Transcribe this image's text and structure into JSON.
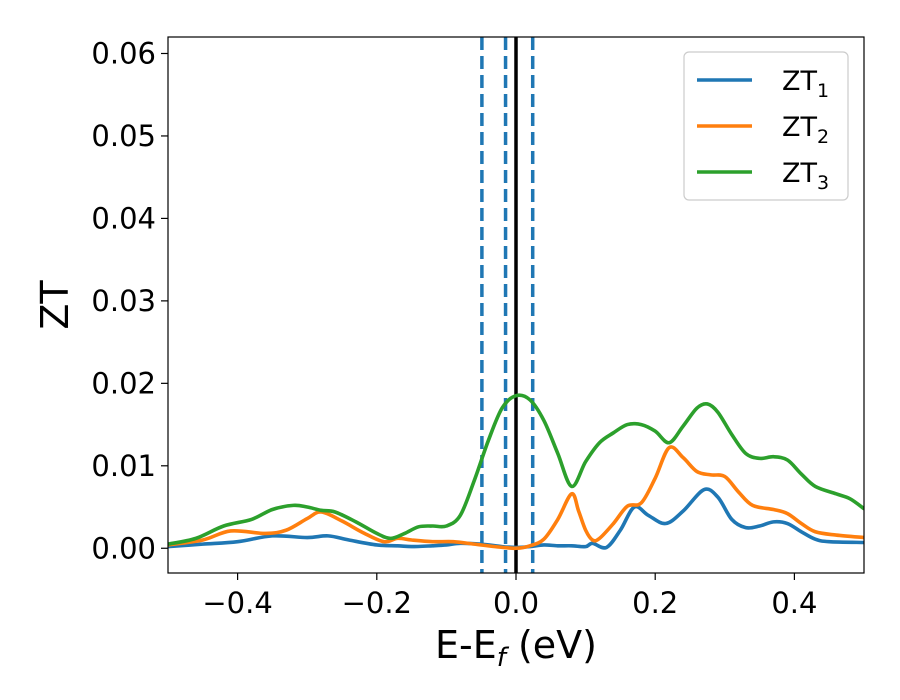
{
  "chart_data": {
    "type": "line",
    "xlabel": "E-E",
    "xlabel_subscript": "f",
    "xlabel_unit": " (eV)",
    "ylabel": "ZT",
    "xlim": [
      -0.5,
      0.5
    ],
    "ylim": [
      -0.003,
      0.062
    ],
    "xticks": [
      -0.4,
      -0.2,
      0.0,
      0.2,
      0.4
    ],
    "xtick_labels": [
      "−0.4",
      "−0.2",
      "0.0",
      "0.2",
      "0.4"
    ],
    "yticks": [
      0.0,
      0.01,
      0.02,
      0.03,
      0.04,
      0.05,
      0.06
    ],
    "ytick_labels": [
      "0.00",
      "0.01",
      "0.02",
      "0.03",
      "0.04",
      "0.05",
      "0.06"
    ],
    "grid": false,
    "legend_position": "top-right",
    "vlines": [
      {
        "x": -0.049,
        "style": "dashed",
        "color": "#1f77b4"
      },
      {
        "x": -0.015,
        "style": "dashed",
        "color": "#1f77b4"
      },
      {
        "x": 0.0,
        "style": "solid",
        "color": "#000000"
      },
      {
        "x": 0.024,
        "style": "dashed",
        "color": "#1f77b4"
      }
    ],
    "series": [
      {
        "name": "ZT",
        "name_subscript": "1",
        "color": "#1f77b4",
        "points": [
          [
            -0.5,
            0.0002
          ],
          [
            -0.45,
            0.0005
          ],
          [
            -0.4,
            0.0008
          ],
          [
            -0.35,
            0.0015
          ],
          [
            -0.3,
            0.0013
          ],
          [
            -0.27,
            0.0015
          ],
          [
            -0.24,
            0.001
          ],
          [
            -0.2,
            0.0004
          ],
          [
            -0.17,
            0.0003
          ],
          [
            -0.15,
            0.0002
          ],
          [
            -0.12,
            0.0003
          ],
          [
            -0.1,
            0.0004
          ],
          [
            -0.08,
            0.0006
          ],
          [
            -0.05,
            0.0005
          ],
          [
            -0.02,
            0.0002
          ],
          [
            0.0,
            0.0001
          ],
          [
            0.02,
            0.0002
          ],
          [
            0.04,
            0.0004
          ],
          [
            0.06,
            0.0003
          ],
          [
            0.08,
            0.0003
          ],
          [
            0.1,
            0.0002
          ],
          [
            0.11,
            0.0006
          ],
          [
            0.13,
            0.0001
          ],
          [
            0.15,
            0.0022
          ],
          [
            0.17,
            0.005
          ],
          [
            0.19,
            0.004
          ],
          [
            0.215,
            0.003
          ],
          [
            0.24,
            0.0045
          ],
          [
            0.27,
            0.0071
          ],
          [
            0.29,
            0.0062
          ],
          [
            0.31,
            0.0035
          ],
          [
            0.33,
            0.0025
          ],
          [
            0.35,
            0.0027
          ],
          [
            0.37,
            0.0032
          ],
          [
            0.39,
            0.003
          ],
          [
            0.41,
            0.002
          ],
          [
            0.43,
            0.0011
          ],
          [
            0.45,
            0.0008
          ],
          [
            0.5,
            0.0007
          ]
        ]
      },
      {
        "name": "ZT",
        "name_subscript": "2",
        "color": "#ff7f0e",
        "points": [
          [
            -0.5,
            0.0004
          ],
          [
            -0.45,
            0.001
          ],
          [
            -0.41,
            0.0021
          ],
          [
            -0.36,
            0.0018
          ],
          [
            -0.33,
            0.0022
          ],
          [
            -0.3,
            0.0036
          ],
          [
            -0.28,
            0.0044
          ],
          [
            -0.25,
            0.0033
          ],
          [
            -0.22,
            0.0019
          ],
          [
            -0.19,
            0.0008
          ],
          [
            -0.17,
            0.0012
          ],
          [
            -0.15,
            0.001
          ],
          [
            -0.12,
            0.0008
          ],
          [
            -0.09,
            0.0008
          ],
          [
            -0.06,
            0.0005
          ],
          [
            -0.03,
            0.0002
          ],
          [
            0.0,
            0.0
          ],
          [
            0.02,
            0.0003
          ],
          [
            0.04,
            0.0011
          ],
          [
            0.06,
            0.0035
          ],
          [
            0.08,
            0.0066
          ],
          [
            0.09,
            0.0045
          ],
          [
            0.1,
            0.0022
          ],
          [
            0.11,
            0.001
          ],
          [
            0.12,
            0.0012
          ],
          [
            0.14,
            0.003
          ],
          [
            0.16,
            0.0051
          ],
          [
            0.18,
            0.0055
          ],
          [
            0.2,
            0.0085
          ],
          [
            0.22,
            0.0122
          ],
          [
            0.24,
            0.011
          ],
          [
            0.26,
            0.0093
          ],
          [
            0.28,
            0.0089
          ],
          [
            0.3,
            0.0087
          ],
          [
            0.32,
            0.0068
          ],
          [
            0.34,
            0.0052
          ],
          [
            0.37,
            0.0047
          ],
          [
            0.39,
            0.0042
          ],
          [
            0.41,
            0.003
          ],
          [
            0.43,
            0.002
          ],
          [
            0.46,
            0.0016
          ],
          [
            0.5,
            0.0013
          ]
        ]
      },
      {
        "name": "ZT",
        "name_subscript": "3",
        "color": "#2ca02c",
        "points": [
          [
            -0.5,
            0.0005
          ],
          [
            -0.46,
            0.0012
          ],
          [
            -0.42,
            0.0027
          ],
          [
            -0.38,
            0.0035
          ],
          [
            -0.35,
            0.0047
          ],
          [
            -0.32,
            0.0052
          ],
          [
            -0.3,
            0.005
          ],
          [
            -0.28,
            0.0046
          ],
          [
            -0.26,
            0.0044
          ],
          [
            -0.23,
            0.0032
          ],
          [
            -0.2,
            0.0018
          ],
          [
            -0.18,
            0.0012
          ],
          [
            -0.16,
            0.0018
          ],
          [
            -0.14,
            0.0026
          ],
          [
            -0.12,
            0.0027
          ],
          [
            -0.1,
            0.0027
          ],
          [
            -0.08,
            0.004
          ],
          [
            -0.06,
            0.0082
          ],
          [
            -0.04,
            0.013
          ],
          [
            -0.02,
            0.017
          ],
          [
            0.0,
            0.0185
          ],
          [
            0.02,
            0.018
          ],
          [
            0.04,
            0.0155
          ],
          [
            0.06,
            0.0115
          ],
          [
            0.08,
            0.0075
          ],
          [
            0.1,
            0.0105
          ],
          [
            0.12,
            0.0128
          ],
          [
            0.14,
            0.014
          ],
          [
            0.16,
            0.015
          ],
          [
            0.18,
            0.015
          ],
          [
            0.2,
            0.0142
          ],
          [
            0.22,
            0.0128
          ],
          [
            0.24,
            0.0148
          ],
          [
            0.26,
            0.017
          ],
          [
            0.275,
            0.0175
          ],
          [
            0.29,
            0.0165
          ],
          [
            0.31,
            0.0138
          ],
          [
            0.33,
            0.0115
          ],
          [
            0.35,
            0.0109
          ],
          [
            0.37,
            0.0111
          ],
          [
            0.39,
            0.0107
          ],
          [
            0.41,
            0.009
          ],
          [
            0.43,
            0.0075
          ],
          [
            0.46,
            0.0066
          ],
          [
            0.48,
            0.006
          ],
          [
            0.5,
            0.0048
          ]
        ]
      }
    ]
  }
}
